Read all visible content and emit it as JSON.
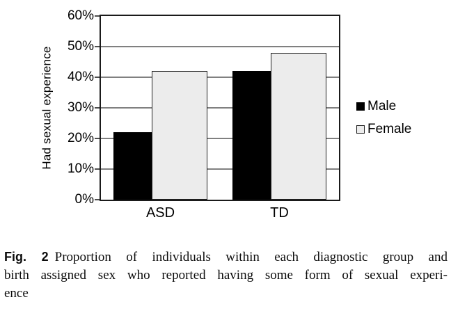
{
  "chart_data": {
    "type": "bar",
    "title": "",
    "categories": [
      "ASD",
      "TD"
    ],
    "series": [
      {
        "name": "Male",
        "values": [
          22,
          42
        ],
        "fill": "#000000",
        "border": "#000000"
      },
      {
        "name": "Female",
        "values": [
          42,
          48
        ],
        "fill": "#ececec",
        "border": "#1f1f1f"
      }
    ],
    "xlabel": "",
    "ylabel": "Had sexual experience",
    "ylim": [
      0,
      60
    ],
    "yticks": [
      0,
      10,
      20,
      30,
      40,
      50,
      60
    ],
    "ytick_suffix": "%",
    "grid": "horizontal",
    "gridline_color": "#808080",
    "axis_color": "#1a1a1a",
    "tick_color": "#4d4d4d",
    "legend_position": "right"
  },
  "caption": {
    "fig_label": "Fig. 2",
    "line1": "Proportion of individuals within each diagnostic group and",
    "line2": "birth assigned sex who reported having some form of sexual experi-",
    "line3": "ence"
  }
}
